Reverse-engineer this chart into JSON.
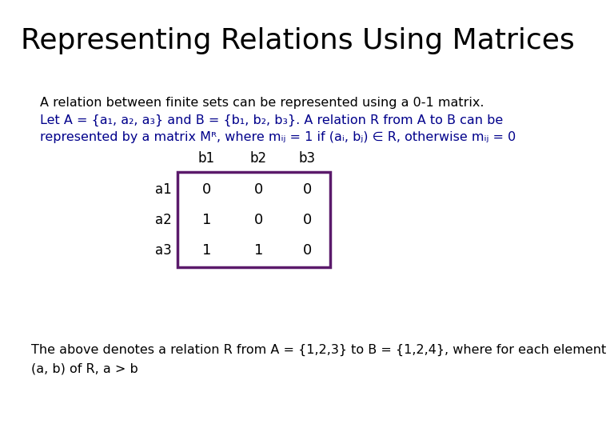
{
  "title": "Representing Relations Using Matrices",
  "title_fontsize": 26,
  "title_color": "#000000",
  "bg_color": "#ffffff",
  "body_line1": "A relation between finite sets can be represented using a 0-1 matrix.",
  "body_line1_color": "#000000",
  "body_line2": "Let A = {a₁, a₂, a₃} and B = {b₁, b₂, b₃}. A relation R from A to B can be",
  "body_line3": "represented by a matrix Mᴿ, where mᵢⱼ = 1 if (aᵢ, bⱼ) ∈ R, otherwise mᵢⱼ = 0",
  "body_color": "#00008B",
  "body_fontsize": 11.5,
  "col_headers": [
    "b1",
    "b2",
    "b3"
  ],
  "row_headers": [
    "a1",
    "a2",
    "a3"
  ],
  "matrix": [
    [
      0,
      0,
      0
    ],
    [
      1,
      0,
      0
    ],
    [
      1,
      1,
      0
    ]
  ],
  "matrix_border_color": "#5B1A6B",
  "matrix_fontsize": 13,
  "header_fontsize": 12,
  "footer_line1": "The above denotes a relation R from A = {1,2,3} to B = {1,2,4}, where for each element",
  "footer_line2": "(a, b) of R, a > b",
  "footer_color": "#000000",
  "footer_fontsize": 11.5
}
